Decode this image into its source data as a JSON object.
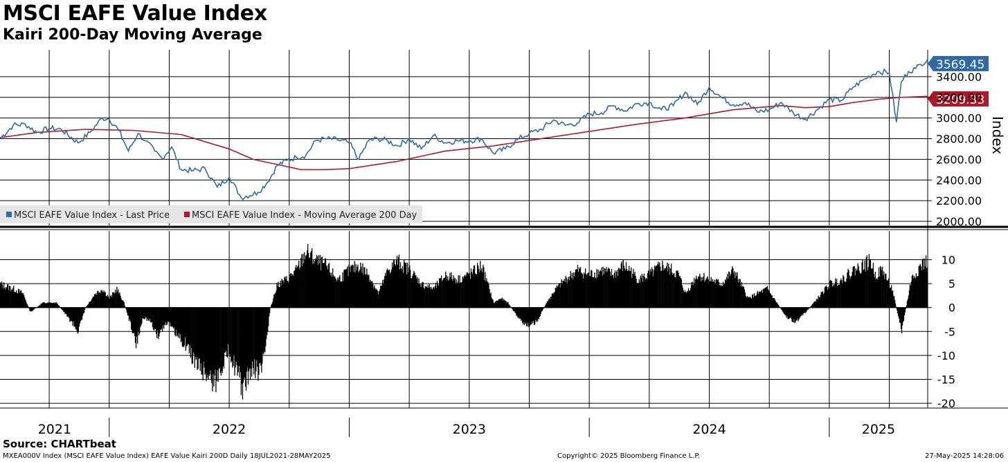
{
  "header": {
    "title": "MSCI EAFE Value Index",
    "subtitle": "Kairi 200-Day Moving Average"
  },
  "footer": {
    "source": "Source: CHARTbeat",
    "left": "MXEA000V Index (MSCI EAFE Value Index) EAFE Value Kairi 200D  Daily 18JUL2021-28MAY2025",
    "center": "Copyright© 2025 Bloomberg Finance L.P.",
    "right": "27-May-2025 14:28:06"
  },
  "legend": {
    "price_label": "MSCI EAFE Value Index - Last Price",
    "ma_label": "MSCI EAFE Value Index - Moving Average 200 Day"
  },
  "colors": {
    "price": "#2e6aa6",
    "ma": "#b0182a",
    "kairi": "#000000",
    "grid": "#000000"
  },
  "chart_data": [
    {
      "type": "line",
      "title": "MSCI EAFE Value Index",
      "ylabel": "Index",
      "ylim": [
        1960,
        3660
      ],
      "yticks": [
        "2000.00",
        "2200.00",
        "2400.00",
        "2600.00",
        "2800.00",
        "3000.00",
        "3200.00",
        "3400.00"
      ],
      "last_values": {
        "price": "3569.45",
        "ma": "3209.33"
      },
      "x_range": [
        2021.545,
        2025.41
      ],
      "series": [
        {
          "name": "MSCI EAFE Value Index - Last Price",
          "x": [
            2021.545,
            2021.6,
            2021.65,
            2021.7,
            2021.75,
            2021.8,
            2021.87,
            2021.92,
            2021.97,
            2022.0,
            2022.04,
            2022.08,
            2022.12,
            2022.15,
            2022.19,
            2022.22,
            2022.26,
            2022.3,
            2022.35,
            2022.4,
            2022.45,
            2022.5,
            2022.55,
            2022.62,
            2022.66,
            2022.7,
            2022.74,
            2022.78,
            2022.82,
            2022.86,
            2022.9,
            2022.95,
            2023.0,
            2023.04,
            2023.08,
            2023.12,
            2023.16,
            2023.2,
            2023.25,
            2023.3,
            2023.35,
            2023.4,
            2023.45,
            2023.5,
            2023.55,
            2023.6,
            2023.65,
            2023.7,
            2023.75,
            2023.8,
            2023.85,
            2023.9,
            2023.95,
            2024.0,
            2024.05,
            2024.1,
            2024.15,
            2024.2,
            2024.25,
            2024.3,
            2024.35,
            2024.4,
            2024.45,
            2024.5,
            2024.55,
            2024.6,
            2024.65,
            2024.7,
            2024.75,
            2024.8,
            2024.85,
            2024.9,
            2024.95,
            2025.0,
            2025.05,
            2025.1,
            2025.15,
            2025.2,
            2025.25,
            2025.28,
            2025.3,
            2025.33,
            2025.36,
            2025.38,
            2025.41
          ],
          "values": [
            2800,
            2930,
            2940,
            2860,
            2900,
            2890,
            2760,
            2860,
            3000,
            2990,
            2880,
            2680,
            2850,
            2780,
            2680,
            2610,
            2720,
            2500,
            2490,
            2510,
            2330,
            2430,
            2230,
            2280,
            2380,
            2540,
            2590,
            2620,
            2640,
            2780,
            2800,
            2790,
            2760,
            2600,
            2780,
            2800,
            2780,
            2730,
            2800,
            2700,
            2830,
            2760,
            2780,
            2780,
            2800,
            2660,
            2700,
            2790,
            2850,
            2890,
            2980,
            2930,
            2950,
            3040,
            3050,
            3120,
            3070,
            3140,
            3150,
            3080,
            3120,
            3250,
            3130,
            3300,
            3200,
            3130,
            3150,
            3060,
            3080,
            3150,
            3050,
            2990,
            3080,
            3180,
            3170,
            3300,
            3380,
            3450,
            3440,
            2960,
            3350,
            3450,
            3480,
            3520,
            3569.45
          ]
        },
        {
          "name": "MSCI EAFE Value Index - Moving Average 200 Day",
          "x": [
            2021.545,
            2021.7,
            2021.9,
            2022.1,
            2022.3,
            2022.5,
            2022.6,
            2022.8,
            2022.9,
            2023.0,
            2023.2,
            2023.4,
            2023.6,
            2023.8,
            2024.0,
            2024.2,
            2024.4,
            2024.6,
            2024.8,
            2024.9,
            2025.0,
            2025.1,
            2025.2,
            2025.3,
            2025.41
          ],
          "values": [
            2810,
            2860,
            2890,
            2880,
            2840,
            2700,
            2600,
            2500,
            2500,
            2510,
            2580,
            2680,
            2730,
            2800,
            2870,
            2940,
            3000,
            3080,
            3120,
            3100,
            3110,
            3150,
            3180,
            3200,
            3209.33
          ]
        }
      ]
    },
    {
      "type": "bar",
      "title": "Kairi 200-Day Moving Average",
      "ylim": [
        -21,
        16
      ],
      "yticks": [
        "10",
        "5",
        "0",
        "-5",
        "-10",
        "-15",
        "-20"
      ],
      "x_tick_labels": [
        "2021",
        "2022",
        "2023",
        "2024",
        "2025"
      ],
      "x": [
        2021.545,
        2021.6,
        2021.64,
        2021.67,
        2021.72,
        2021.78,
        2021.84,
        2021.87,
        2021.9,
        2021.94,
        2021.97,
        2022.0,
        2022.03,
        2022.06,
        2022.09,
        2022.11,
        2022.14,
        2022.17,
        2022.2,
        2022.24,
        2022.28,
        2022.32,
        2022.36,
        2022.4,
        2022.44,
        2022.47,
        2022.5,
        2022.53,
        2022.56,
        2022.58,
        2022.61,
        2022.63,
        2022.65,
        2022.67,
        2022.7,
        2022.74,
        2022.78,
        2022.82,
        2022.86,
        2022.9,
        2022.95,
        2023.0,
        2023.04,
        2023.08,
        2023.12,
        2023.16,
        2023.2,
        2023.25,
        2023.3,
        2023.35,
        2023.4,
        2023.45,
        2023.5,
        2023.55,
        2023.6,
        2023.63,
        2023.66,
        2023.7,
        2023.74,
        2023.78,
        2023.82,
        2023.86,
        2023.9,
        2023.95,
        2024.0,
        2024.05,
        2024.1,
        2024.14,
        2024.17,
        2024.2,
        2024.25,
        2024.3,
        2024.34,
        2024.37,
        2024.4,
        2024.45,
        2024.5,
        2024.55,
        2024.6,
        2024.63,
        2024.66,
        2024.7,
        2024.74,
        2024.78,
        2024.82,
        2024.86,
        2024.9,
        2024.95,
        2025.0,
        2025.05,
        2025.1,
        2025.14,
        2025.17,
        2025.19,
        2025.22,
        2025.26,
        2025.3,
        2025.34,
        2025.38,
        2025.41
      ],
      "values": [
        5,
        4,
        3,
        -1,
        1,
        1,
        -3,
        -5,
        0,
        3,
        4,
        2,
        4,
        1,
        -4,
        -8,
        -2,
        -3,
        -6,
        -3,
        -6,
        -8,
        -12,
        -14,
        -16,
        -12,
        -9,
        -14,
        -18,
        -14,
        -13,
        -14,
        -8,
        0,
        5,
        6,
        8,
        12,
        10,
        9,
        6,
        8,
        9,
        7,
        3,
        8,
        10,
        8,
        5,
        4,
        7,
        6,
        7,
        9,
        1,
        2,
        1,
        -2,
        -4,
        -3,
        1,
        4,
        6,
        8,
        7,
        8,
        7,
        9,
        8,
        6,
        7,
        9,
        8,
        7,
        3,
        7,
        6,
        5,
        8,
        5,
        2,
        3,
        4,
        1,
        -2,
        -3,
        -1,
        2,
        5,
        6,
        8,
        9,
        10,
        7,
        8,
        4,
        -5,
        6,
        9,
        10
      ]
    }
  ]
}
